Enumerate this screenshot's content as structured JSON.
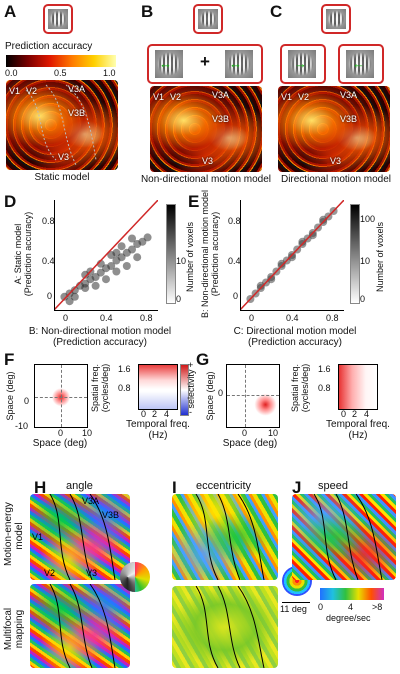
{
  "panels": {
    "A": {
      "letter": "A",
      "model_label": "Static model",
      "colorbar_title": "Prediction accuracy",
      "colorbar_ticks": [
        "0.0",
        "0.5",
        "1.0"
      ],
      "areas": [
        "V1",
        "V2",
        "V3A",
        "V3B",
        "V3"
      ]
    },
    "B": {
      "letter": "B",
      "model_label": "Non-directional motion model",
      "plus": "+",
      "areas": [
        "V1",
        "V2",
        "V3A",
        "V3B",
        "V3"
      ]
    },
    "C": {
      "letter": "C",
      "model_label": "Directional motion model",
      "areas": [
        "V1",
        "V2",
        "V3A",
        "V3B",
        "V3"
      ]
    },
    "D": {
      "letter": "D",
      "ylabel_line1": "A: Static model",
      "ylabel_line2": "(Prediction accuracy)",
      "xlabel_line1": "B: Non-directional motion model",
      "xlabel_line2": "(Prediction accuracy)",
      "x_ticks": [
        "0",
        "0.4",
        "0.8"
      ],
      "y_ticks": [
        "0",
        "0.4",
        "0.8"
      ],
      "cbar_ticks": [
        "0",
        "10"
      ],
      "cbar_label": "Number of voxels"
    },
    "E": {
      "letter": "E",
      "ylabel_line1": "B: Non-directional motion model",
      "ylabel_line2": "(Prediction accuracy)",
      "xlabel_line1": "C: Directional motion model",
      "xlabel_line2": "(Prediction accuracy)",
      "x_ticks": [
        "0",
        "0.4",
        "0.8"
      ],
      "y_ticks": [
        "0",
        "0.4",
        "0.8"
      ],
      "cbar_ticks": [
        "0",
        "10",
        "100"
      ],
      "cbar_label": "Number of voxels"
    },
    "F": {
      "letter": "F",
      "space_y": "Space (deg)",
      "space_x": "Space (deg)",
      "space_x_ticks": [
        "0",
        "10"
      ],
      "space_y_ticks": [
        "0",
        "-10"
      ],
      "freq_y_line1": "Spatial freq.",
      "freq_y_line2": "(cycles/deg)",
      "freq_y_ticks": [
        "1.6",
        "0.8"
      ],
      "freq_x_line1": "Temporal freq.",
      "freq_x_line2": "(Hz)",
      "freq_x_ticks": [
        "0",
        "2",
        "4"
      ],
      "sel_label": "selectivity",
      "sel_plus": "+",
      "sel_minus": "-"
    },
    "G": {
      "letter": "G",
      "space_y": "Space (deg)",
      "space_x": "Space (deg)",
      "space_x_ticks": [
        "0",
        "10"
      ],
      "space_y_ticks": [
        "0"
      ],
      "freq_y_line1": "Spatial freq.",
      "freq_y_line2": "(cycles/deg)",
      "freq_y_ticks": [
        "1.6",
        "0.8"
      ],
      "freq_x_line1": "Temporal freq.",
      "freq_x_line2": "(Hz)",
      "freq_x_ticks": [
        "0",
        "2",
        "4"
      ]
    },
    "H": {
      "letter": "H",
      "title": "angle",
      "row1_line1": "Motion-energy",
      "row1_line2": "model",
      "row2_line1": "Multifocal",
      "row2_line2": "mapping",
      "areas": [
        "V1",
        "V2",
        "V3A",
        "V3B",
        "V3"
      ]
    },
    "I": {
      "letter": "I",
      "title": "eccentricity",
      "scale_label": "11 deg"
    },
    "J": {
      "letter": "J",
      "title": "speed",
      "cbar_ticks": [
        "0",
        "4",
        ">8"
      ],
      "cbar_unit": "degree/sec"
    }
  },
  "chart_data": [
    {
      "type": "scatter",
      "panel": "D",
      "xlabel": "B: Non-directional motion model (Prediction accuracy)",
      "ylabel": "A: Static model (Prediction accuracy)",
      "xlim": [
        -0.1,
        0.9
      ],
      "ylim": [
        -0.1,
        0.9
      ],
      "x_ticks": [
        0,
        0.4,
        0.8
      ],
      "y_ticks": [
        0,
        0.4,
        0.8
      ],
      "density_colorbar": {
        "label": "Number of voxels",
        "ticks": [
          0,
          10
        ],
        "scale": "linear"
      },
      "reference_line": "identity (red)",
      "points": [
        [
          0.0,
          0.02
        ],
        [
          0.05,
          0.05
        ],
        [
          0.1,
          0.08
        ],
        [
          0.15,
          0.12
        ],
        [
          0.2,
          0.14
        ],
        [
          0.25,
          0.18
        ],
        [
          0.3,
          0.2
        ],
        [
          0.35,
          0.24
        ],
        [
          0.4,
          0.28
        ],
        [
          0.45,
          0.3
        ],
        [
          0.5,
          0.35
        ],
        [
          0.55,
          0.38
        ],
        [
          0.6,
          0.42
        ],
        [
          0.65,
          0.45
        ],
        [
          0.7,
          0.5
        ],
        [
          0.75,
          0.52
        ],
        [
          0.8,
          0.56
        ],
        [
          0.1,
          0.02
        ],
        [
          0.2,
          0.1
        ],
        [
          0.3,
          0.12
        ],
        [
          0.4,
          0.18
        ],
        [
          0.5,
          0.25
        ],
        [
          0.6,
          0.3
        ],
        [
          0.7,
          0.38
        ],
        [
          0.2,
          0.22
        ],
        [
          0.35,
          0.32
        ],
        [
          0.5,
          0.42
        ],
        [
          0.65,
          0.55
        ],
        [
          0.05,
          -0.02
        ],
        [
          0.25,
          0.25
        ],
        [
          0.45,
          0.4
        ],
        [
          0.55,
          0.48
        ]
      ]
    },
    {
      "type": "scatter",
      "panel": "E",
      "xlabel": "C: Directional motion model (Prediction accuracy)",
      "ylabel": "B: Non-directional motion model (Prediction accuracy)",
      "xlim": [
        -0.1,
        0.9
      ],
      "ylim": [
        -0.1,
        0.9
      ],
      "x_ticks": [
        0,
        0.4,
        0.8
      ],
      "y_ticks": [
        0,
        0.4,
        0.8
      ],
      "density_colorbar": {
        "label": "Number of voxels",
        "ticks": [
          0,
          10,
          100
        ],
        "scale": "log"
      },
      "reference_line": "identity (red)",
      "points": [
        [
          0.0,
          0.0
        ],
        [
          0.05,
          0.05
        ],
        [
          0.1,
          0.1
        ],
        [
          0.15,
          0.15
        ],
        [
          0.2,
          0.2
        ],
        [
          0.25,
          0.25
        ],
        [
          0.3,
          0.3
        ],
        [
          0.35,
          0.35
        ],
        [
          0.4,
          0.4
        ],
        [
          0.45,
          0.45
        ],
        [
          0.5,
          0.5
        ],
        [
          0.55,
          0.55
        ],
        [
          0.6,
          0.6
        ],
        [
          0.65,
          0.65
        ],
        [
          0.7,
          0.7
        ],
        [
          0.75,
          0.75
        ],
        [
          0.8,
          0.8
        ],
        [
          0.1,
          0.12
        ],
        [
          0.2,
          0.18
        ],
        [
          0.3,
          0.32
        ],
        [
          0.4,
          0.38
        ],
        [
          0.5,
          0.52
        ],
        [
          0.6,
          0.58
        ],
        [
          0.7,
          0.72
        ]
      ]
    }
  ],
  "colors": {
    "frame_red": "#d02828",
    "identity_line": "#d02828",
    "arrow_green": "#17b317"
  }
}
